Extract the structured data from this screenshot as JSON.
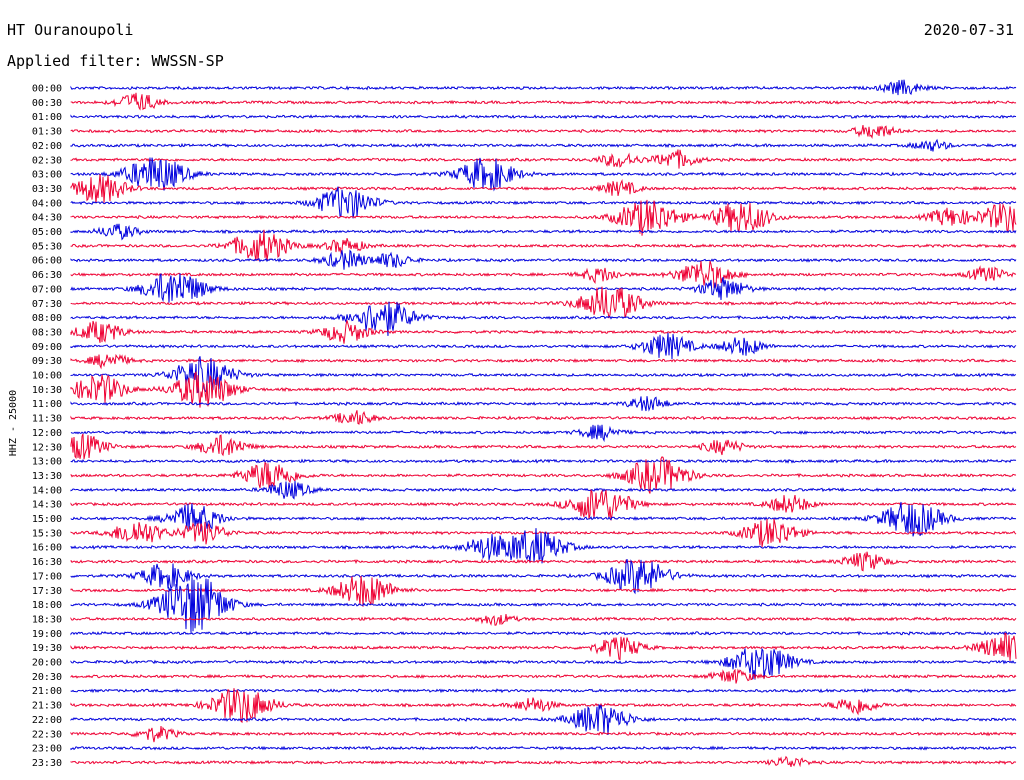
{
  "header": {
    "station": "HT Ouranoupoli",
    "filter": "Applied filter: WWSSN-SP",
    "date": "2020-07-31"
  },
  "chart_data": {
    "type": "line",
    "title": "HT Ouranoupoli",
    "subtitle": "Applied filter: WWSSN-SP",
    "date": "2020-07-31",
    "ylabel": "HHZ - 25000",
    "colors": {
      "even": "#0000dd",
      "odd": "#ee0033"
    },
    "rows": [
      {
        "label": "00:00",
        "events": [
          [
            0.88,
            0.4
          ]
        ]
      },
      {
        "label": "00:30",
        "events": [
          [
            0.07,
            0.5
          ]
        ]
      },
      {
        "label": "01:00",
        "events": []
      },
      {
        "label": "01:30",
        "events": [
          [
            0.85,
            0.4
          ]
        ]
      },
      {
        "label": "02:00",
        "events": [
          [
            0.91,
            0.3
          ]
        ]
      },
      {
        "label": "02:30",
        "events": [
          [
            0.58,
            0.4
          ],
          [
            0.64,
            0.5
          ]
        ]
      },
      {
        "label": "03:00",
        "events": [
          [
            0.09,
            1.0
          ],
          [
            0.44,
            0.9
          ]
        ]
      },
      {
        "label": "03:30",
        "events": [
          [
            0.03,
            0.8
          ],
          [
            0.58,
            0.4
          ]
        ]
      },
      {
        "label": "04:00",
        "events": [
          [
            0.29,
            0.9
          ]
        ]
      },
      {
        "label": "04:30",
        "events": [
          [
            0.61,
            1.0
          ],
          [
            0.71,
            0.9
          ],
          [
            0.93,
            0.5
          ],
          [
            0.99,
            0.8
          ]
        ]
      },
      {
        "label": "05:00",
        "events": [
          [
            0.05,
            0.4
          ]
        ]
      },
      {
        "label": "05:30",
        "events": [
          [
            0.2,
            0.9
          ],
          [
            0.29,
            0.4
          ]
        ]
      },
      {
        "label": "06:00",
        "events": [
          [
            0.29,
            0.5
          ],
          [
            0.34,
            0.4
          ]
        ]
      },
      {
        "label": "06:30",
        "events": [
          [
            0.56,
            0.4
          ],
          [
            0.67,
            0.8
          ],
          [
            0.97,
            0.4
          ]
        ]
      },
      {
        "label": "07:00",
        "events": [
          [
            0.11,
            1.0
          ],
          [
            0.69,
            0.6
          ]
        ]
      },
      {
        "label": "07:30",
        "events": [
          [
            0.57,
            1.0
          ]
        ]
      },
      {
        "label": "08:00",
        "events": [
          [
            0.33,
            1.0
          ]
        ]
      },
      {
        "label": "08:30",
        "events": [
          [
            0.03,
            0.6
          ],
          [
            0.29,
            0.6
          ]
        ]
      },
      {
        "label": "09:00",
        "events": [
          [
            0.63,
            0.7
          ],
          [
            0.71,
            0.5
          ]
        ]
      },
      {
        "label": "09:30",
        "events": [
          [
            0.04,
            0.4
          ]
        ]
      },
      {
        "label": "10:00",
        "events": [
          [
            0.14,
            1.0
          ]
        ]
      },
      {
        "label": "10:30",
        "events": [
          [
            0.03,
            0.8
          ],
          [
            0.14,
            1.0
          ]
        ]
      },
      {
        "label": "11:00",
        "events": [
          [
            0.61,
            0.4
          ]
        ]
      },
      {
        "label": "11:30",
        "events": [
          [
            0.3,
            0.4
          ]
        ]
      },
      {
        "label": "12:00",
        "events": [
          [
            0.56,
            0.4
          ]
        ]
      },
      {
        "label": "12:30",
        "events": [
          [
            0.01,
            0.7
          ],
          [
            0.16,
            0.6
          ],
          [
            0.69,
            0.4
          ]
        ]
      },
      {
        "label": "13:00",
        "events": []
      },
      {
        "label": "13:30",
        "events": [
          [
            0.21,
            0.8
          ],
          [
            0.62,
            1.0
          ]
        ]
      },
      {
        "label": "14:00",
        "events": [
          [
            0.23,
            0.5
          ]
        ]
      },
      {
        "label": "14:30",
        "events": [
          [
            0.56,
            1.0
          ],
          [
            0.76,
            0.5
          ]
        ]
      },
      {
        "label": "15:00",
        "events": [
          [
            0.13,
            0.8
          ],
          [
            0.89,
            1.0
          ]
        ]
      },
      {
        "label": "15:30",
        "events": [
          [
            0.07,
            0.7
          ],
          [
            0.14,
            0.6
          ],
          [
            0.74,
            0.8
          ]
        ]
      },
      {
        "label": "16:00",
        "events": [
          [
            0.44,
            0.6
          ],
          [
            0.49,
            1.0
          ]
        ]
      },
      {
        "label": "16:30",
        "events": [
          [
            0.84,
            0.5
          ]
        ]
      },
      {
        "label": "17:00",
        "events": [
          [
            0.1,
            0.7
          ],
          [
            0.6,
            1.0
          ]
        ]
      },
      {
        "label": "17:30",
        "events": [
          [
            0.31,
            0.9
          ]
        ]
      },
      {
        "label": "18:00",
        "events": [
          [
            0.12,
            1.0
          ],
          [
            0.14,
            0.9
          ]
        ]
      },
      {
        "label": "18:30",
        "events": [
          [
            0.45,
            0.3
          ]
        ]
      },
      {
        "label": "19:00",
        "events": []
      },
      {
        "label": "19:30",
        "events": [
          [
            0.58,
            0.6
          ],
          [
            0.99,
            0.8
          ]
        ]
      },
      {
        "label": "20:00",
        "events": [
          [
            0.73,
            1.0
          ]
        ]
      },
      {
        "label": "20:30",
        "events": [
          [
            0.7,
            0.4
          ]
        ]
      },
      {
        "label": "21:00",
        "events": []
      },
      {
        "label": "21:30",
        "events": [
          [
            0.18,
            1.0
          ],
          [
            0.49,
            0.4
          ],
          [
            0.83,
            0.5
          ]
        ]
      },
      {
        "label": "22:00",
        "events": [
          [
            0.56,
            0.9
          ]
        ]
      },
      {
        "label": "22:30",
        "events": [
          [
            0.09,
            0.4
          ]
        ]
      },
      {
        "label": "23:00",
        "events": []
      },
      {
        "label": "23:30",
        "events": [
          [
            0.76,
            0.3
          ]
        ]
      }
    ]
  }
}
